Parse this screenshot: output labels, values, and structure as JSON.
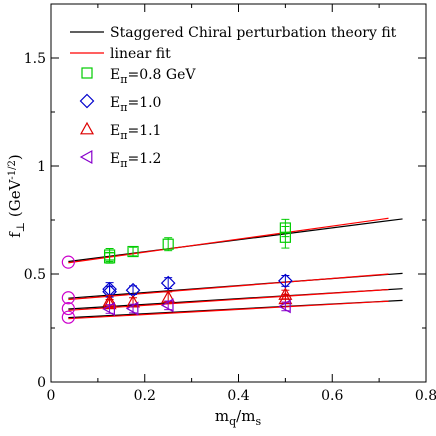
{
  "chart_data": {
    "type": "scatter",
    "xlabel_main": "m",
    "xlabel_sub1": "q",
    "xlabel_mid": "/m",
    "xlabel_sub2": "s",
    "ylabel_main": "f",
    "ylabel_sub": "⊥",
    "ylabel_unit_open": " (GeV",
    "ylabel_unit_sup": "-1/2",
    "ylabel_unit_close": ")",
    "xlim": [
      0,
      0.8
    ],
    "ylim": [
      0,
      1.75
    ],
    "xticks": [
      {
        "value": 0,
        "label": "0"
      },
      {
        "value": 0.2,
        "label": "0.2"
      },
      {
        "value": 0.4,
        "label": "0.4"
      },
      {
        "value": 0.6,
        "label": "0.6"
      },
      {
        "value": 0.8,
        "label": "0.8"
      }
    ],
    "yticks": [
      {
        "value": 0,
        "label": "0"
      },
      {
        "value": 0.5,
        "label": "0.5"
      },
      {
        "value": 1,
        "label": "1"
      },
      {
        "value": 1.5,
        "label": "1.5"
      }
    ],
    "legend": {
      "position": "top-right",
      "fit_black": "Staggered Chiral perturbation theory fit",
      "fit_red": "linear fit",
      "entries": [
        {
          "prefix": "E",
          "sub": "π",
          "text": "=0.8 GeV",
          "marker": "square",
          "color": "#00cc00"
        },
        {
          "prefix": "E",
          "sub": "π",
          "text": "=1.0",
          "marker": "diamond",
          "color": "#0000cc"
        },
        {
          "prefix": "E",
          "sub": "π",
          "text": "=1.1",
          "marker": "triangle-up",
          "color": "#dd0000"
        },
        {
          "prefix": "E",
          "sub": "π",
          "text": "=1.2",
          "marker": "triangle-left",
          "color": "#8800cc"
        }
      ]
    },
    "fits_black": [
      {
        "x": [
          0.037,
          0.75
        ],
        "y": [
          0.558,
          0.755
        ]
      },
      {
        "x": [
          0.037,
          0.75
        ],
        "y": [
          0.388,
          0.503
        ]
      },
      {
        "x": [
          0.037,
          0.75
        ],
        "y": [
          0.338,
          0.432
        ]
      },
      {
        "x": [
          0.037,
          0.75
        ],
        "y": [
          0.298,
          0.378
        ]
      }
    ],
    "fits_red": [
      {
        "x": [
          0.037,
          0.72
        ],
        "y": [
          0.552,
          0.758
        ]
      },
      {
        "x": [
          0.037,
          0.72
        ],
        "y": [
          0.382,
          0.5
        ]
      },
      {
        "x": [
          0.037,
          0.72
        ],
        "y": [
          0.332,
          0.428
        ]
      },
      {
        "x": [
          0.037,
          0.72
        ],
        "y": [
          0.293,
          0.374
        ]
      }
    ],
    "chiral_points": {
      "color": "#cc00cc",
      "x": 0.037,
      "y": [
        0.555,
        0.39,
        0.34,
        0.3
      ]
    },
    "series": [
      {
        "name": "Eπ=0.8 GeV",
        "marker": "square",
        "color": "#00cc00",
        "points": [
          {
            "x": 0.125,
            "y": 0.588,
            "err": 0.03
          },
          {
            "x": 0.125,
            "y": 0.575,
            "err": 0.025
          },
          {
            "x": 0.175,
            "y": 0.604,
            "err": 0.02
          },
          {
            "x": 0.25,
            "y": 0.638,
            "err": 0.03
          },
          {
            "x": 0.5,
            "y": 0.713,
            "err": 0.04
          },
          {
            "x": 0.5,
            "y": 0.67,
            "err": 0.05
          }
        ]
      },
      {
        "name": "Eπ=1.0",
        "marker": "diamond",
        "color": "#0000cc",
        "points": [
          {
            "x": 0.125,
            "y": 0.43,
            "err": 0.03
          },
          {
            "x": 0.125,
            "y": 0.418,
            "err": 0.025
          },
          {
            "x": 0.175,
            "y": 0.425,
            "err": 0.02
          },
          {
            "x": 0.25,
            "y": 0.458,
            "err": 0.025
          },
          {
            "x": 0.5,
            "y": 0.468,
            "err": 0.025
          }
        ]
      },
      {
        "name": "Eπ=1.1",
        "marker": "triangle-up",
        "color": "#dd0000",
        "points": [
          {
            "x": 0.125,
            "y": 0.375,
            "err": 0.025
          },
          {
            "x": 0.125,
            "y": 0.362,
            "err": 0.02
          },
          {
            "x": 0.175,
            "y": 0.37,
            "err": 0.02
          },
          {
            "x": 0.25,
            "y": 0.392,
            "err": 0.025
          },
          {
            "x": 0.5,
            "y": 0.405,
            "err": 0.02
          },
          {
            "x": 0.5,
            "y": 0.385,
            "err": 0.02
          }
        ]
      },
      {
        "name": "Eπ=1.2",
        "marker": "triangle-left",
        "color": "#8800cc",
        "points": [
          {
            "x": 0.125,
            "y": 0.338,
            "err": 0.02
          },
          {
            "x": 0.175,
            "y": 0.34,
            "err": 0.02
          },
          {
            "x": 0.25,
            "y": 0.355,
            "err": 0.02
          },
          {
            "x": 0.5,
            "y": 0.35,
            "err": 0.02
          }
        ]
      }
    ]
  }
}
